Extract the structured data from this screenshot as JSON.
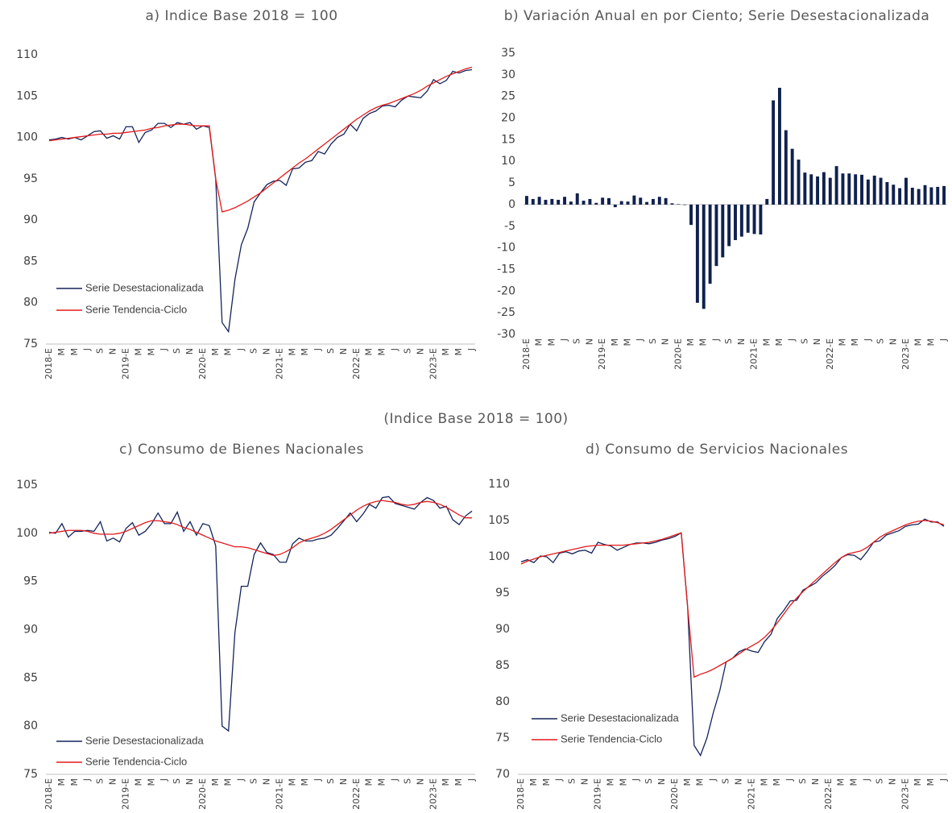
{
  "heading": "(Indice Base 2018 = 100)",
  "chart_data": [
    {
      "type": "line",
      "title": "a) Indice Base 2018 = 100",
      "categories": [
        "2018-E",
        null,
        "M",
        null,
        "M",
        null,
        "J",
        null,
        "S",
        null,
        "N",
        null,
        "2019-E",
        null,
        "M",
        null,
        "M",
        null,
        "J",
        null,
        "S",
        null,
        "N",
        null,
        "2020-E",
        null,
        "M",
        null,
        "M",
        null,
        "J",
        null,
        "S",
        null,
        "N",
        null,
        "2021-E",
        null,
        "M",
        null,
        "M",
        null,
        "J",
        null,
        "S",
        null,
        "N",
        null,
        "2022-E",
        null,
        "M",
        null,
        "M",
        null,
        "J",
        null,
        "S",
        null,
        "N",
        null,
        "2023-E",
        null,
        "M",
        null,
        "M",
        null,
        "J"
      ],
      "series": [
        {
          "name": "Serie Desestacionalizada",
          "color": "#13245a",
          "values": [
            99.7,
            99.8,
            100.0,
            99.8,
            100.0,
            99.7,
            100.2,
            100.7,
            100.8,
            99.9,
            100.2,
            99.8,
            101.3,
            101.3,
            99.4,
            100.6,
            100.9,
            101.7,
            101.7,
            101.2,
            101.8,
            101.6,
            101.8,
            101.0,
            101.4,
            101.2,
            95.0,
            77.6,
            76.5,
            82.8,
            87.0,
            89.0,
            92.2,
            93.3,
            94.3,
            94.7,
            94.8,
            94.2,
            96.2,
            96.3,
            97.0,
            97.2,
            98.3,
            98.0,
            99.2,
            100.0,
            100.4,
            101.6,
            100.8,
            102.3,
            102.9,
            103.2,
            103.8,
            103.9,
            103.7,
            104.5,
            105.0,
            104.9,
            104.8,
            105.6,
            107.0,
            106.5,
            106.9,
            108.0,
            107.8,
            108.1,
            108.2
          ]
        },
        {
          "name": "Serie Tendencia-Ciclo",
          "color": "#e41a1c",
          "values": [
            99.6,
            99.7,
            99.8,
            99.9,
            100.0,
            100.1,
            100.2,
            100.3,
            100.4,
            100.4,
            100.5,
            100.5,
            100.6,
            100.7,
            100.8,
            100.9,
            101.1,
            101.2,
            101.4,
            101.5,
            101.6,
            101.6,
            101.5,
            101.4,
            101.4,
            101.4,
            95.0,
            91.0,
            91.2,
            91.5,
            91.9,
            92.3,
            92.8,
            93.3,
            93.9,
            94.5,
            95.1,
            95.7,
            96.3,
            96.9,
            97.4,
            98.0,
            98.6,
            99.2,
            99.8,
            100.4,
            101.0,
            101.6,
            102.2,
            102.7,
            103.2,
            103.6,
            103.9,
            104.1,
            104.4,
            104.7,
            105.0,
            105.3,
            105.7,
            106.2,
            106.6,
            107.0,
            107.4,
            107.7,
            108.0,
            108.3,
            108.5
          ]
        }
      ],
      "ylim": [
        75,
        110
      ],
      "yticks": [
        75,
        80,
        85,
        90,
        95,
        100,
        105,
        110
      ],
      "legend": "lower left",
      "grid": false
    },
    {
      "type": "bar",
      "title": "b) Variación Anual en por Ciento; Serie Desestacionalizada",
      "categories": [
        "2018-E",
        null,
        "M",
        null,
        "M",
        null,
        "J",
        null,
        "S",
        null,
        "N",
        null,
        "2019-E",
        null,
        "M",
        null,
        "M",
        null,
        "J",
        null,
        "S",
        null,
        "N",
        null,
        "2020-E",
        null,
        "M",
        null,
        "M",
        null,
        "J",
        null,
        "S",
        null,
        "N",
        null,
        "2021-E",
        null,
        "M",
        null,
        "M",
        null,
        "J",
        null,
        "S",
        null,
        "N",
        null,
        "2022-E",
        null,
        "M",
        null,
        "M",
        null,
        "J",
        null,
        "S",
        null,
        "N",
        null,
        "2023-E",
        null,
        "M",
        null,
        "M",
        null,
        "J"
      ],
      "values": [
        2.0,
        1.3,
        1.8,
        1.1,
        1.3,
        1.1,
        1.8,
        0.7,
        2.6,
        0.9,
        1.3,
        0.4,
        1.6,
        1.5,
        -0.6,
        0.8,
        0.7,
        2.1,
        1.6,
        0.6,
        1.3,
        1.8,
        1.5,
        0.3,
        0.1,
        -0.1,
        -4.7,
        -22.7,
        -24.1,
        -18.3,
        -14.2,
        -12.2,
        -9.6,
        -8.2,
        -7.4,
        -6.5,
        -6.8,
        -6.9,
        1.3,
        24.1,
        27.0,
        17.2,
        12.9,
        10.4,
        7.4,
        7.0,
        6.5,
        7.5,
        6.2,
        8.9,
        7.2,
        7.2,
        7.0,
        6.9,
        5.8,
        6.7,
        6.2,
        5.2,
        4.6,
        3.8,
        6.2,
        3.9,
        3.6,
        4.5,
        4.0,
        4.1,
        4.3
      ],
      "color": "#10214f",
      "ylim": [
        -30,
        35
      ],
      "yticks": [
        -30,
        -25,
        -20,
        -15,
        -10,
        -5,
        0,
        5,
        10,
        15,
        20,
        25,
        30,
        35
      ],
      "grid": false
    },
    {
      "type": "line",
      "title": "c) Consumo de Bienes Nacionales",
      "categories": [
        "2018-E",
        null,
        "M",
        null,
        "M",
        null,
        "J",
        null,
        "S",
        null,
        "N",
        null,
        "2019-E",
        null,
        "M",
        null,
        "M",
        null,
        "J",
        null,
        "S",
        null,
        "N",
        null,
        "2020-E",
        null,
        "M",
        null,
        "M",
        null,
        "J",
        null,
        "S",
        null,
        "N",
        null,
        "2021-E",
        null,
        "M",
        null,
        "M",
        null,
        "J",
        null,
        "S",
        null,
        "N",
        null,
        "2022-E",
        null,
        "M",
        null,
        "M",
        null,
        "J",
        null,
        "S",
        null,
        "N",
        null,
        "2023-E",
        null,
        "M",
        null,
        "M",
        null,
        "J"
      ],
      "series": [
        {
          "name": "Serie Desestacionalizada",
          "color": "#13245a",
          "values": [
            100.1,
            100.0,
            101.0,
            99.6,
            100.2,
            100.2,
            100.3,
            100.2,
            101.2,
            99.2,
            99.5,
            99.1,
            100.5,
            101.1,
            99.8,
            100.2,
            101.0,
            102.1,
            101.0,
            101.0,
            102.2,
            100.2,
            101.2,
            99.8,
            101.0,
            100.8,
            98.7,
            80.0,
            79.5,
            89.7,
            94.5,
            94.5,
            97.8,
            99.0,
            98.0,
            97.8,
            97.0,
            97.0,
            98.9,
            99.5,
            99.2,
            99.2,
            99.4,
            99.5,
            99.8,
            100.5,
            101.3,
            102.1,
            101.2,
            102.0,
            103.0,
            102.6,
            103.7,
            103.8,
            103.1,
            102.9,
            102.7,
            102.5,
            103.2,
            103.7,
            103.4,
            102.6,
            102.8,
            101.4,
            100.9,
            101.8,
            102.3
          ]
        },
        {
          "name": "Serie Tendencia-Ciclo",
          "color": "#e41a1c",
          "values": [
            100.0,
            100.1,
            100.2,
            100.3,
            100.3,
            100.3,
            100.2,
            100.0,
            99.9,
            99.9,
            99.9,
            100.0,
            100.2,
            100.5,
            100.8,
            101.1,
            101.3,
            101.3,
            101.2,
            101.1,
            100.9,
            100.6,
            100.4,
            100.1,
            99.8,
            99.5,
            99.2,
            99.0,
            98.8,
            98.6,
            98.6,
            98.5,
            98.3,
            98.1,
            97.9,
            97.7,
            97.8,
            98.1,
            98.5,
            99.0,
            99.3,
            99.5,
            99.7,
            100.0,
            100.4,
            100.9,
            101.4,
            101.9,
            102.4,
            102.8,
            103.1,
            103.3,
            103.4,
            103.3,
            103.2,
            103.0,
            102.9,
            103.0,
            103.2,
            103.3,
            103.2,
            103.0,
            102.7,
            102.3,
            101.9,
            101.6,
            101.6
          ]
        }
      ],
      "ylim": [
        75,
        105
      ],
      "yticks": [
        75,
        80,
        85,
        90,
        95,
        100,
        105
      ],
      "legend": "lower left",
      "grid": false
    },
    {
      "type": "line",
      "title": "d) Consumo de Servicios Nacionales",
      "categories": [
        "2018-E",
        null,
        "M",
        null,
        "M",
        null,
        "J",
        null,
        "S",
        null,
        "N",
        null,
        "2019-E",
        null,
        "M",
        null,
        "M",
        null,
        "J",
        null,
        "S",
        null,
        "N",
        null,
        "2020-E",
        null,
        "M",
        null,
        "M",
        null,
        "J",
        null,
        "S",
        null,
        "N",
        null,
        "2021-E",
        null,
        "M",
        null,
        "M",
        null,
        "J",
        null,
        "S",
        null,
        "N",
        null,
        "2022-E",
        null,
        "M",
        null,
        "M",
        null,
        "J",
        null,
        "S",
        null,
        "N",
        null,
        "2023-E",
        null,
        "M",
        null,
        "M",
        null,
        "J"
      ],
      "series": [
        {
          "name": "Serie Desestacionalizada",
          "color": "#13245a",
          "values": [
            99.3,
            99.6,
            99.2,
            100.1,
            100.0,
            99.2,
            100.5,
            100.7,
            100.4,
            100.8,
            100.9,
            100.5,
            102.0,
            101.7,
            101.5,
            100.9,
            101.3,
            101.7,
            101.9,
            101.9,
            101.8,
            102.0,
            102.3,
            102.5,
            102.8,
            103.3,
            93.0,
            74.0,
            72.6,
            75.0,
            78.5,
            81.5,
            85.5,
            86.0,
            86.9,
            87.3,
            87.0,
            86.8,
            88.3,
            89.3,
            91.5,
            92.6,
            93.9,
            94.0,
            95.4,
            95.9,
            96.4,
            97.3,
            98.0,
            98.8,
            99.9,
            100.3,
            100.2,
            99.6,
            100.7,
            102.0,
            102.2,
            103.0,
            103.3,
            103.6,
            104.2,
            104.4,
            104.5,
            105.2,
            104.8,
            104.8,
            104.2
          ]
        },
        {
          "name": "Serie Tendencia-Ciclo",
          "color": "#e41a1c",
          "values": [
            99.0,
            99.4,
            99.7,
            100.0,
            100.2,
            100.4,
            100.6,
            100.8,
            101.0,
            101.2,
            101.4,
            101.5,
            101.6,
            101.6,
            101.6,
            101.6,
            101.6,
            101.7,
            101.8,
            101.9,
            102.0,
            102.2,
            102.4,
            102.7,
            103.0,
            103.3,
            93.0,
            83.4,
            83.8,
            84.1,
            84.5,
            85.0,
            85.5,
            86.0,
            86.6,
            87.2,
            87.7,
            88.2,
            88.9,
            89.8,
            90.9,
            92.1,
            93.3,
            94.3,
            95.2,
            96.0,
            96.8,
            97.6,
            98.4,
            99.2,
            99.9,
            100.4,
            100.6,
            100.8,
            101.3,
            102.0,
            102.7,
            103.2,
            103.6,
            104.0,
            104.4,
            104.7,
            104.9,
            105.0,
            104.9,
            104.7,
            104.4
          ]
        }
      ],
      "ylim": [
        70,
        110
      ],
      "yticks": [
        70,
        75,
        80,
        85,
        90,
        95,
        100,
        105,
        110
      ],
      "legend": "lower left",
      "grid": false
    }
  ]
}
